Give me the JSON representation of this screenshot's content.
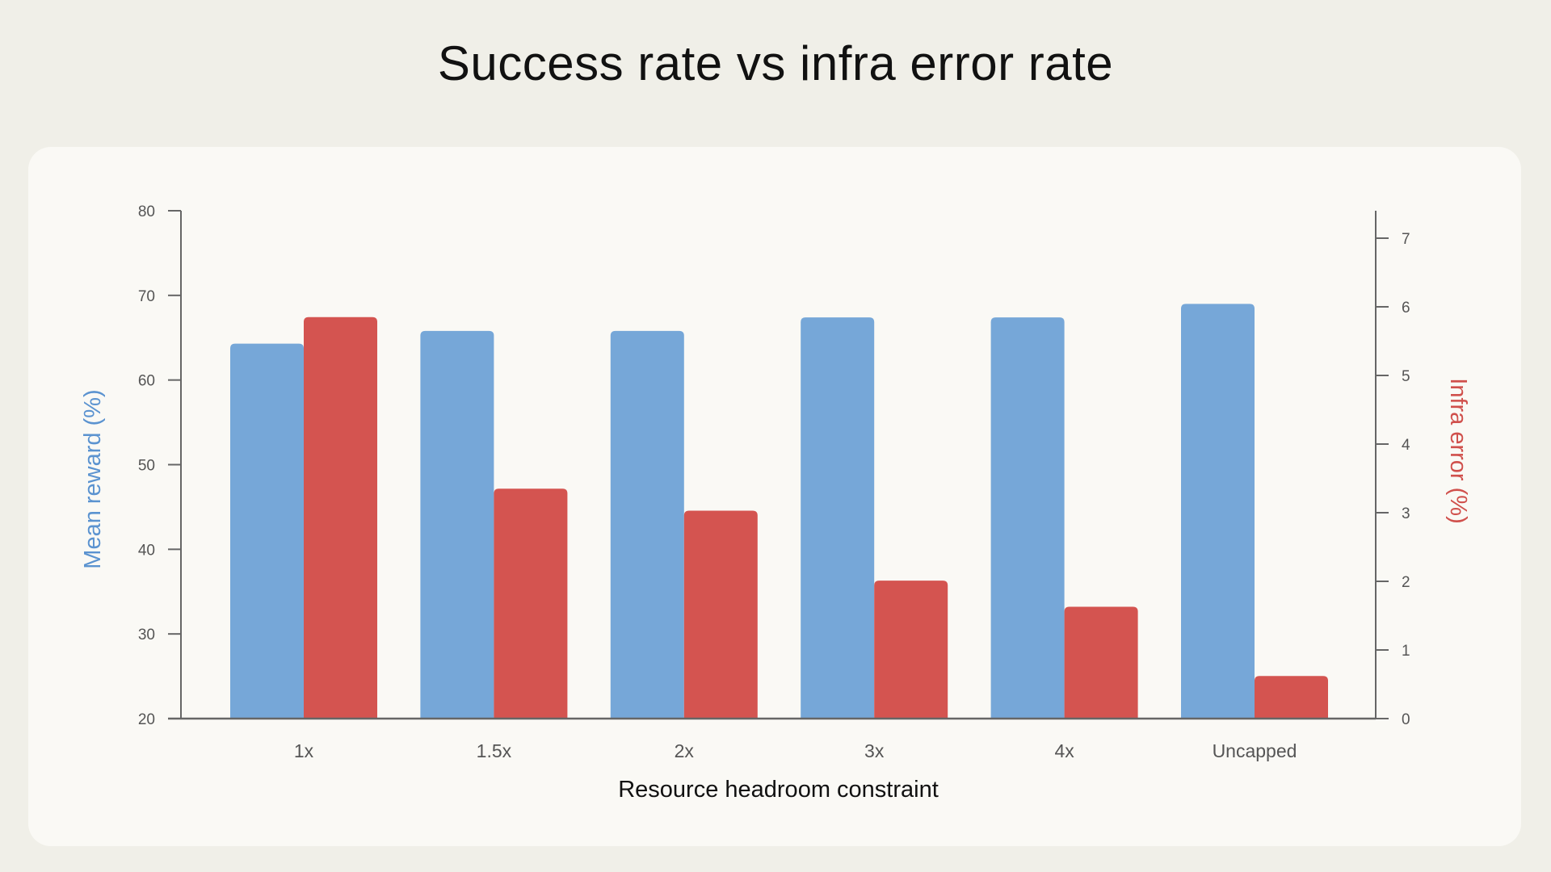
{
  "chart_data": {
    "type": "bar",
    "title": "Success rate vs infra error rate",
    "xlabel": "Resource headroom constraint",
    "ylabel": "Mean reward (%)",
    "ylabel_right": "Infra error (%)",
    "categories": [
      "1x",
      "1.5x",
      "2x",
      "3x",
      "4x",
      "Uncapped"
    ],
    "ylim": [
      20,
      80
    ],
    "ylim_right": [
      0,
      7.4
    ],
    "yticks": [
      20,
      30,
      40,
      50,
      60,
      70,
      80
    ],
    "yticks_right": [
      0,
      1,
      2,
      3,
      4,
      5,
      6,
      7
    ],
    "grid": false,
    "legend": "none",
    "series": [
      {
        "axis": "left",
        "color": "#76a7d8",
        "values": [
          64.3,
          65.8,
          65.8,
          67.4,
          67.4,
          69.0
        ]
      },
      {
        "axis": "right",
        "color": "#d45450",
        "values": [
          5.85,
          3.35,
          3.03,
          2.01,
          1.63,
          0.62
        ]
      }
    ],
    "label_colors": {
      "left": "#5b93d0",
      "right": "#d0504c"
    }
  }
}
